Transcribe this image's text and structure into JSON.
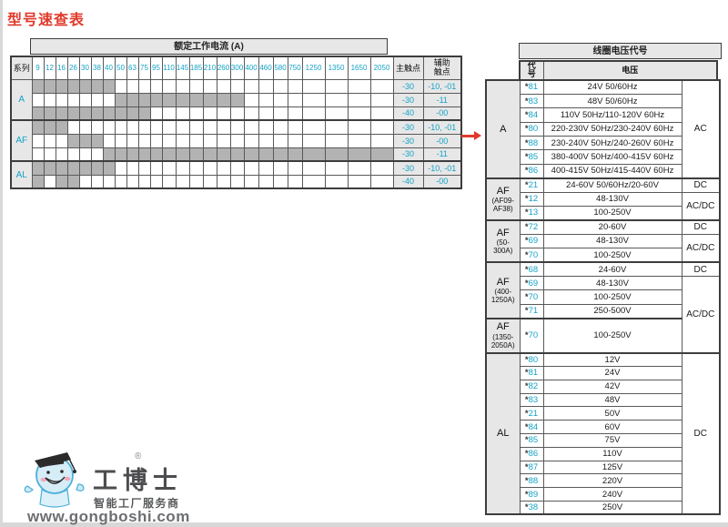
{
  "title": "型号速查表",
  "left_table": {
    "header_current": "额定工作电流 (A)",
    "col_series": "系列",
    "col_main": "主触点",
    "col_aux": "辅助触点",
    "current_columns": [
      "9",
      "12",
      "16",
      "26",
      "30",
      "38",
      "40",
      "50",
      "63",
      "75",
      "95",
      "110",
      "145",
      "185",
      "210",
      "260",
      "300",
      "400",
      "460",
      "580",
      "750",
      "1250",
      "1350",
      "1650",
      "2050"
    ],
    "groups": [
      {
        "series": "A",
        "rows": [
          {
            "gray": [
              0,
              1,
              2,
              3,
              4,
              5,
              6
            ],
            "main": "-30",
            "aux": "-10, -01"
          },
          {
            "gray": [
              7,
              8,
              9,
              10,
              11,
              12,
              13,
              14,
              15,
              16
            ],
            "main": "-30",
            "aux": "-11"
          },
          {
            "gray": [
              0,
              1,
              2,
              3,
              4,
              5,
              6,
              7,
              8,
              9
            ],
            "main": "-40",
            "aux": "-00"
          }
        ]
      },
      {
        "series": "AF",
        "rows": [
          {
            "gray": [
              0,
              1,
              2
            ],
            "main": "-30",
            "aux": "-10, -01"
          },
          {
            "gray": [
              3,
              4,
              5
            ],
            "main": "-30",
            "aux": "-00"
          },
          {
            "gray": [
              6,
              7,
              8,
              9,
              10,
              11,
              12,
              13,
              14,
              15,
              16,
              17,
              18,
              19,
              20,
              21,
              22,
              23,
              24
            ],
            "main": "-30",
            "aux": "-11"
          }
        ]
      },
      {
        "series": "AL",
        "rows": [
          {
            "gray": [
              0,
              1,
              2,
              3,
              4,
              5,
              6
            ],
            "main": "-30",
            "aux": "-10, -01"
          },
          {
            "gray": [
              0,
              2,
              3
            ],
            "main": "-40",
            "aux": "-00"
          }
        ]
      }
    ]
  },
  "right_table": {
    "title": "线圈电压代号",
    "col_code": "代号",
    "col_voltage": "电压",
    "sections": [
      {
        "series": "A",
        "sub": "",
        "rows": [
          {
            "code": "*81",
            "voltage": "24V 50/60Hz"
          },
          {
            "code": "*83",
            "voltage": "48V 50/60Hz"
          },
          {
            "code": "*84",
            "voltage": "110V 50Hz/110-120V 60Hz"
          },
          {
            "code": "*80",
            "voltage": "220-230V 50Hz/230-240V 60Hz"
          },
          {
            "code": "*88",
            "voltage": "230-240V 50Hz/240-260V 60Hz"
          },
          {
            "code": "*85",
            "voltage": "380-400V 50Hz/400-415V 60Hz"
          },
          {
            "code": "*86",
            "voltage": "400-415V 50Hz/415-440V 60Hz"
          }
        ],
        "right_cells": [
          {
            "label": "AC",
            "span": 7
          }
        ]
      },
      {
        "series": "AF",
        "sub": "(AF09-AF38)",
        "rows": [
          {
            "code": "*21",
            "voltage": "24-60V 50/60Hz/20-60V"
          },
          {
            "code": "*12",
            "voltage": "48-130V"
          },
          {
            "code": "*13",
            "voltage": "100-250V"
          }
        ],
        "right_cells": [
          {
            "label": "DC",
            "span": 1
          },
          {
            "label": "AC/DC",
            "span": 2
          }
        ]
      },
      {
        "series": "AF",
        "sub": "(50-300A)",
        "rows": [
          {
            "code": "*72",
            "voltage": "20-60V"
          },
          {
            "code": "*69",
            "voltage": "48-130V"
          },
          {
            "code": "*70",
            "voltage": "100-250V"
          }
        ],
        "right_cells": [
          {
            "label": "DC",
            "span": 1
          },
          {
            "label": "AC/DC",
            "span": 2
          }
        ]
      },
      {
        "series": "AF",
        "sub": "(400-1250A)",
        "rows": [
          {
            "code": "*68",
            "voltage": "24-60V"
          },
          {
            "code": "*69",
            "voltage": "48-130V"
          },
          {
            "code": "*70",
            "voltage": "100-250V"
          },
          {
            "code": "*71",
            "voltage": "250-500V"
          }
        ],
        "right_cells": [
          {
            "label": "DC",
            "span": 1
          },
          {
            "label": "AC/DC",
            "span": 4
          }
        ]
      },
      {
        "series": "AF",
        "sub": "(1350-2050A)",
        "rows": [
          {
            "code": "*70",
            "voltage": "100-250V",
            "tall": true
          }
        ],
        "right_cells": []
      },
      {
        "series": "AL",
        "sub": "",
        "al": true,
        "rows": [
          {
            "code": "*80",
            "voltage": "12V"
          },
          {
            "code": "*81",
            "voltage": "24V"
          },
          {
            "code": "*82",
            "voltage": "42V"
          },
          {
            "code": "*83",
            "voltage": "48V"
          },
          {
            "code": "*21",
            "voltage": "50V"
          },
          {
            "code": "*84",
            "voltage": "60V"
          },
          {
            "code": "*85",
            "voltage": "75V"
          },
          {
            "code": "*86",
            "voltage": "110V"
          },
          {
            "code": "*87",
            "voltage": "125V"
          },
          {
            "code": "*88",
            "voltage": "220V"
          },
          {
            "code": "*89",
            "voltage": "240V"
          },
          {
            "code": "*38",
            "voltage": "250V"
          }
        ],
        "right_cells": [
          {
            "label": "DC",
            "span": 12
          }
        ]
      }
    ]
  },
  "arrow_icon": "red-right-arrow",
  "logo": {
    "name": "工博士",
    "registered": "®",
    "slogan": "智能工厂服务商",
    "url": "www.gongboshi.com"
  }
}
